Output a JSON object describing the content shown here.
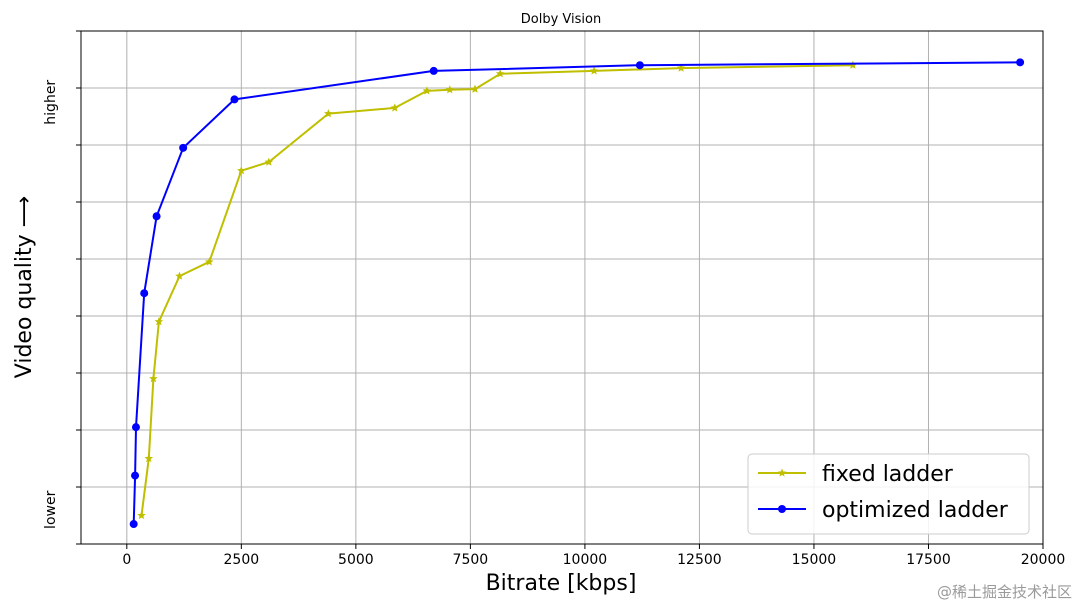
{
  "chart_data": {
    "type": "line",
    "title": "Dolby Vision",
    "xlabel": "Bitrate [kbps]",
    "ylabel": "Video quality ⟶",
    "xlim": [
      -1000,
      20000
    ],
    "ylim": [
      0,
      9
    ],
    "x_ticks": [
      0,
      2500,
      5000,
      7500,
      10000,
      12500,
      15000,
      17500,
      20000
    ],
    "y_grid": [
      1,
      2,
      3,
      4,
      5,
      6,
      7,
      8,
      9
    ],
    "y_tick_labels": [
      {
        "text": "lower",
        "y": 0.6
      },
      {
        "text": "higher",
        "y": 7.75
      }
    ],
    "grid": true,
    "legend_position": "lower-right",
    "series": [
      {
        "name": "fixed ladder",
        "color": "#bfbf00",
        "marker": "star",
        "x": [
          320,
          480,
          580,
          700,
          1150,
          1800,
          2500,
          3100,
          4400,
          5850,
          6550,
          7050,
          7600,
          8150,
          10200,
          12100,
          15850
        ],
        "y": [
          0.5,
          1.5,
          2.9,
          3.9,
          4.7,
          4.95,
          6.55,
          6.7,
          7.55,
          7.65,
          7.95,
          7.97,
          7.98,
          8.25,
          8.3,
          8.35,
          8.4
        ]
      },
      {
        "name": "optimized ladder",
        "color": "#0000ff",
        "marker": "circle",
        "x": [
          150,
          180,
          200,
          380,
          650,
          1230,
          2350,
          6700,
          11200,
          19500
        ],
        "y": [
          0.35,
          1.2,
          2.05,
          4.4,
          5.75,
          6.95,
          7.8,
          8.3,
          8.4,
          8.45
        ]
      }
    ]
  },
  "watermark": "@稀土掘金技术社区"
}
